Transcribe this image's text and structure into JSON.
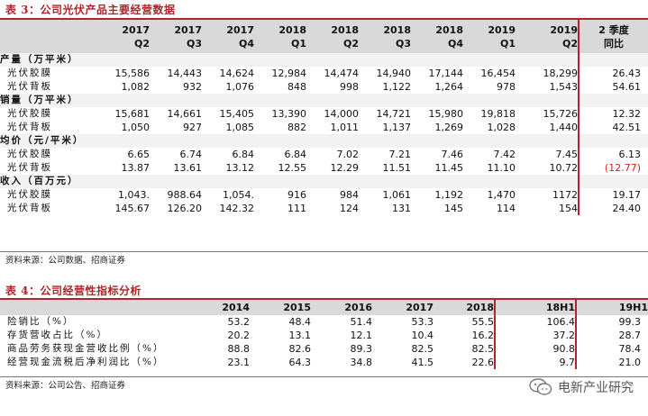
{
  "table3": {
    "caption": "表 3：公司光伏产品主要经营数据",
    "headers": [
      {
        "top": "2017",
        "bottom": "Q2"
      },
      {
        "top": "2017",
        "bottom": "Q3"
      },
      {
        "top": "2017",
        "bottom": "Q4"
      },
      {
        "top": "2018",
        "bottom": "Q1"
      },
      {
        "top": "2018",
        "bottom": "Q2"
      },
      {
        "top": "2018",
        "bottom": "Q3"
      },
      {
        "top": "2018",
        "bottom": "Q4"
      },
      {
        "top": "2019",
        "bottom": "Q1"
      },
      {
        "top": "2019",
        "bottom": "Q2"
      },
      {
        "top": "2 季度",
        "bottom": "同比"
      }
    ],
    "groups": [
      {
        "title": "产量（万平米）",
        "rows": [
          {
            "label": "光伏胶膜",
            "values": [
              "15,586",
              "14,443",
              "14,624",
              "12,984",
              "14,474",
              "14,940",
              "17,144",
              "16,454",
              "18,299",
              "26.43"
            ]
          },
          {
            "label": "光伏背板",
            "values": [
              "1,082",
              "932",
              "1,076",
              "848",
              "998",
              "1,122",
              "1,264",
              "978",
              "1,543",
              "54.61"
            ]
          }
        ]
      },
      {
        "title": "销量（万平米）",
        "rows": [
          {
            "label": "光伏胶膜",
            "values": [
              "15,681",
              "14,661",
              "15,405",
              "13,390",
              "14,000",
              "14,721",
              "15,980",
              "19,818",
              "15,726",
              "12.32"
            ]
          },
          {
            "label": "光伏背板",
            "values": [
              "1,050",
              "927",
              "1,085",
              "882",
              "1,011",
              "1,137",
              "1,269",
              "1,028",
              "1,440",
              "42.51"
            ]
          }
        ]
      },
      {
        "title": "均价（元/平米）",
        "rows": [
          {
            "label": "光伏胶膜",
            "values": [
              "6.65",
              "6.74",
              "6.84",
              "6.84",
              "7.02",
              "7.21",
              "7.46",
              "7.42",
              "7.45",
              "6.13"
            ]
          },
          {
            "label": "光伏背板",
            "values": [
              "13.87",
              "13.61",
              "13.12",
              "12.55",
              "12.29",
              "11.51",
              "11.45",
              "11.10",
              "10.72",
              "(12.77)"
            ]
          }
        ]
      },
      {
        "title": "收入（百万元）",
        "rows": [
          {
            "label": "光伏胶膜",
            "values": [
              "1,043.",
              "988.64",
              "1,054.",
              "916",
              "984",
              "1,061",
              "1,192",
              "1,470",
              "1172",
              "19.17"
            ]
          },
          {
            "label": "光伏背板",
            "values": [
              "145.67",
              "126.20",
              "142.32",
              "111",
              "124",
              "131",
              "145",
              "114",
              "154",
              "24.40"
            ]
          }
        ]
      }
    ],
    "source": "资料来源：公司数据、招商证券"
  },
  "table4": {
    "caption": "表 4：公司经营性指标分析",
    "headers": [
      "2014",
      "2015",
      "2016",
      "2017",
      "2018",
      "18H1",
      "19H1"
    ],
    "rows": [
      {
        "label": "险销比（%）",
        "values": [
          "53.2",
          "48.4",
          "51.4",
          "53.3",
          "55.5",
          "106.4",
          "99.3"
        ]
      },
      {
        "label": "存货营收占比（%）",
        "values": [
          "20.2",
          "13.1",
          "12.1",
          "10.4",
          "16.2",
          "37.2",
          "28.7"
        ]
      },
      {
        "label": "商品劳务获现金营收比例（%）",
        "values": [
          "88.8",
          "82.6",
          "89.3",
          "82.5",
          "82.5",
          "90.8",
          "78.4"
        ]
      },
      {
        "label": "经营现金流税后净利润比（%）",
        "values": [
          "23.1",
          "64.3",
          "34.8",
          "41.5",
          "22.6",
          "9.7",
          "21.0"
        ]
      }
    ],
    "source": "资料来源：公司公告、招商证券"
  },
  "watermark": {
    "text": "电新产业研究",
    "icon": "wechat-icon"
  },
  "colors": {
    "accent": "#b0242b",
    "negative": "#d32020",
    "header_bg": "#d9d9d9"
  }
}
